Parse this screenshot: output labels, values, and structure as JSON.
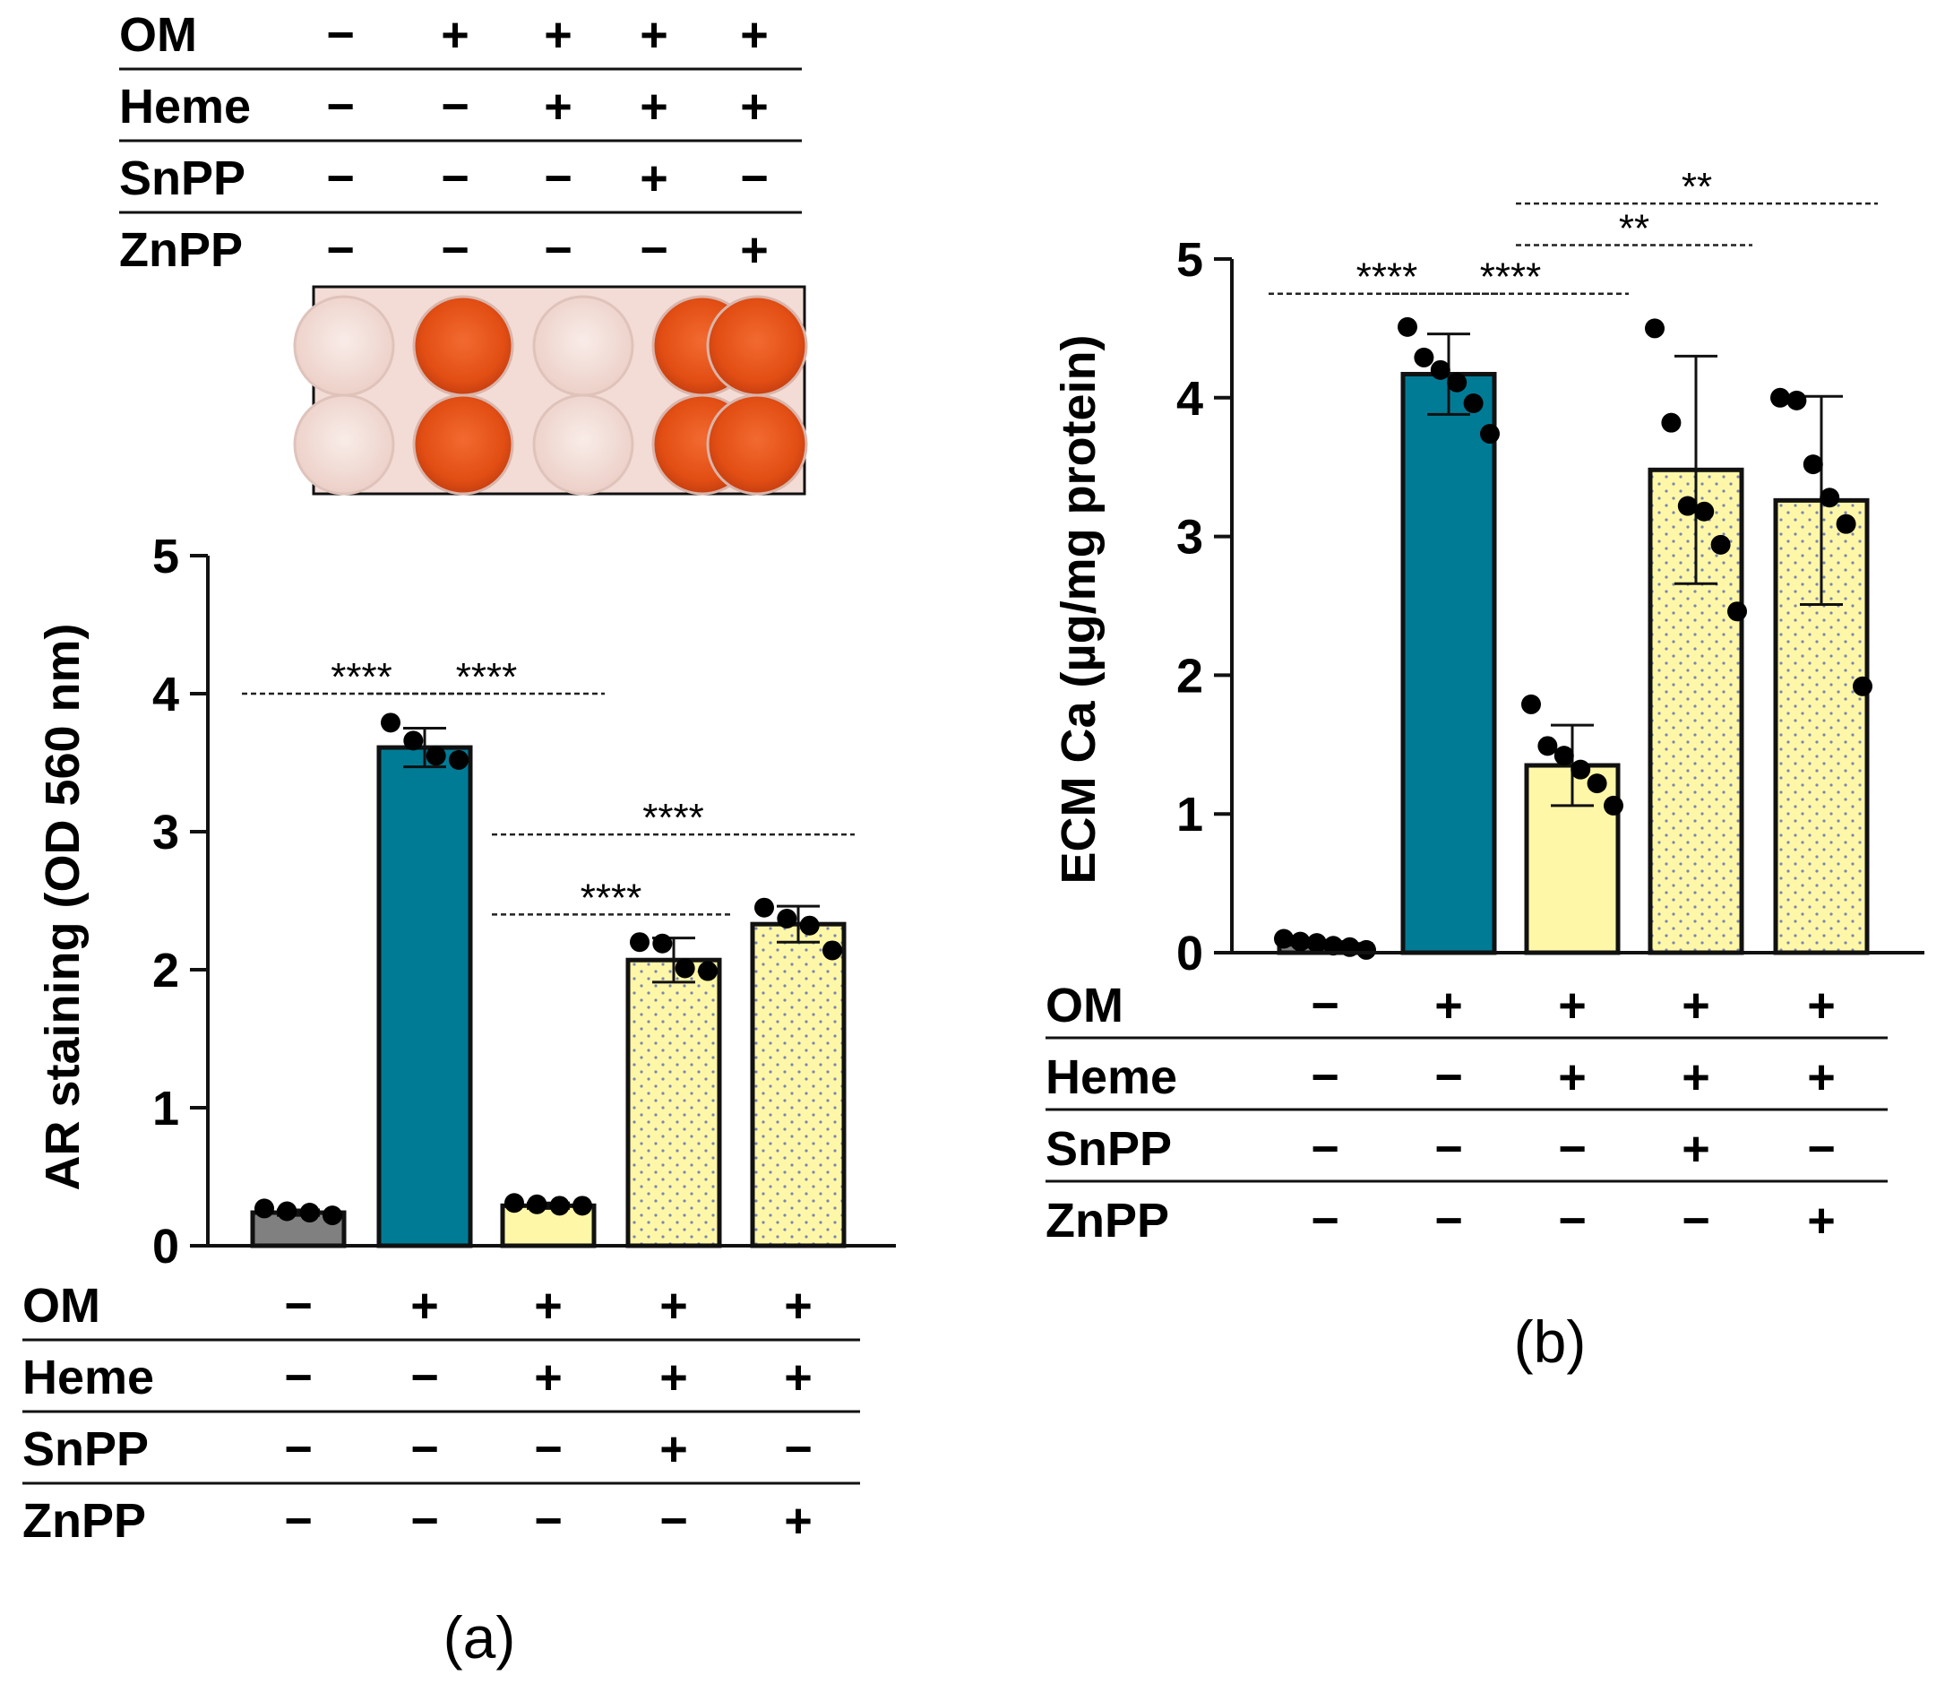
{
  "figure": {
    "conditions": [
      "OM",
      "Heme",
      "SnPP",
      "ZnPP"
    ],
    "minus_sign": "−",
    "plus_sign": "+",
    "group_signs": [
      [
        "−",
        "−",
        "−",
        "−"
      ],
      [
        "+",
        "−",
        "−",
        "−"
      ],
      [
        "+",
        "+",
        "−",
        "−"
      ],
      [
        "+",
        "+",
        "+",
        "−"
      ],
      [
        "+",
        "+",
        "−",
        "+"
      ]
    ],
    "panel_labels": [
      "(a)",
      "(b)"
    ],
    "staining_plate": {
      "rows": 2,
      "stained_wells": [
        false,
        true,
        false,
        true,
        true
      ]
    }
  },
  "colors": {
    "control": "#808080",
    "om": "#007b96",
    "heme": "#fff7a8",
    "heme_dots": "#7a86b0",
    "stain_strong": "#e8501a",
    "stain_weak": "#f2ddd8",
    "plate_bg": "#f3dcd5"
  },
  "chart_data": [
    {
      "panel": "(a)",
      "type": "bar",
      "categories": [
        "Control",
        "OM",
        "OM+Heme",
        "OM+Heme+SnPP",
        "OM+Heme+ZnPP"
      ],
      "values": [
        0.24,
        3.61,
        0.29,
        2.07,
        2.33
      ],
      "errors": [
        0.02,
        0.14,
        0.02,
        0.16,
        0.13
      ],
      "points": [
        [
          0.27,
          0.25,
          0.24,
          0.22
        ],
        [
          3.79,
          3.66,
          3.55,
          3.52
        ],
        [
          0.31,
          0.3,
          0.29,
          0.29
        ],
        [
          2.2,
          2.19,
          2.01,
          1.99
        ],
        [
          2.45,
          2.37,
          2.32,
          2.14
        ]
      ],
      "bar_styles": [
        "control",
        "om",
        "heme",
        "heme-dotted",
        "heme-dotted"
      ],
      "ylabel": "AR staining (OD 560 nm)",
      "ylim": [
        0,
        5
      ],
      "yticks": [
        0,
        1,
        2,
        3,
        4,
        5
      ],
      "significance": [
        {
          "from": 0,
          "to": 1,
          "label": "****",
          "level": 4.0
        },
        {
          "from": 1,
          "to": 2,
          "label": "****",
          "level": 4.0
        },
        {
          "from": 2,
          "to": 3,
          "label": "****",
          "level": 2.4
        },
        {
          "from": 2,
          "to": 4,
          "label": "****",
          "level": 2.98
        }
      ]
    },
    {
      "panel": "(b)",
      "type": "bar",
      "categories": [
        "Control",
        "OM",
        "OM+Heme",
        "OM+Heme+SnPP",
        "OM+Heme+ZnPP"
      ],
      "values": [
        0.06,
        4.17,
        1.35,
        3.48,
        3.26
      ],
      "errors": [
        0.02,
        0.29,
        0.29,
        0.82,
        0.75
      ],
      "points": [
        [
          0.1,
          0.08,
          0.07,
          0.05,
          0.04,
          0.02
        ],
        [
          4.51,
          4.29,
          4.2,
          4.11,
          3.96,
          3.74
        ],
        [
          1.79,
          1.49,
          1.42,
          1.32,
          1.22,
          1.06
        ],
        [
          4.5,
          3.82,
          3.22,
          3.18,
          2.94,
          2.46
        ],
        [
          4.0,
          3.98,
          3.52,
          3.28,
          3.09,
          1.92
        ]
      ],
      "bar_styles": [
        "control",
        "om",
        "heme",
        "heme-dotted",
        "heme-dotted"
      ],
      "ylabel": "ECM Ca (µg/mg protein)",
      "ylim": [
        0,
        5
      ],
      "yticks": [
        0,
        1,
        2,
        3,
        4,
        5
      ],
      "significance": [
        {
          "from": 0,
          "to": 1,
          "label": "****",
          "level": 4.75
        },
        {
          "from": 1,
          "to": 2,
          "label": "****",
          "level": 4.75
        },
        {
          "from": 2,
          "to": 3,
          "label": "**",
          "level": 5.1
        },
        {
          "from": 2,
          "to": 4,
          "label": "**",
          "level": 5.4
        }
      ]
    }
  ]
}
